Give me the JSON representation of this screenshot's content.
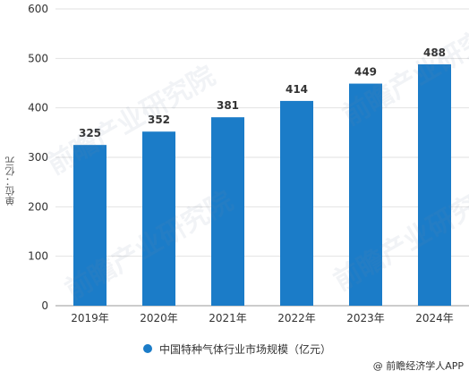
{
  "chart_data": {
    "type": "bar",
    "categories": [
      "2019年",
      "2020年",
      "2021年",
      "2022年",
      "2023年",
      "2024年"
    ],
    "series": [
      {
        "name": "中国特种气体行业市场规模（亿元）",
        "values": [
          325,
          352,
          381,
          414,
          449,
          488
        ]
      }
    ],
    "title": "",
    "xlabel": "",
    "ylabel": "单位：亿元",
    "ylim": [
      0,
      600
    ],
    "yticks": [
      0,
      100,
      200,
      300,
      400,
      500,
      600
    ],
    "grid": true,
    "legend_position": "bottom",
    "data_labels": true,
    "bar_color": "#1b7cc8"
  },
  "source_text": "@ 前瞻经济学人APP",
  "watermark_text": "前瞻产业研究院"
}
